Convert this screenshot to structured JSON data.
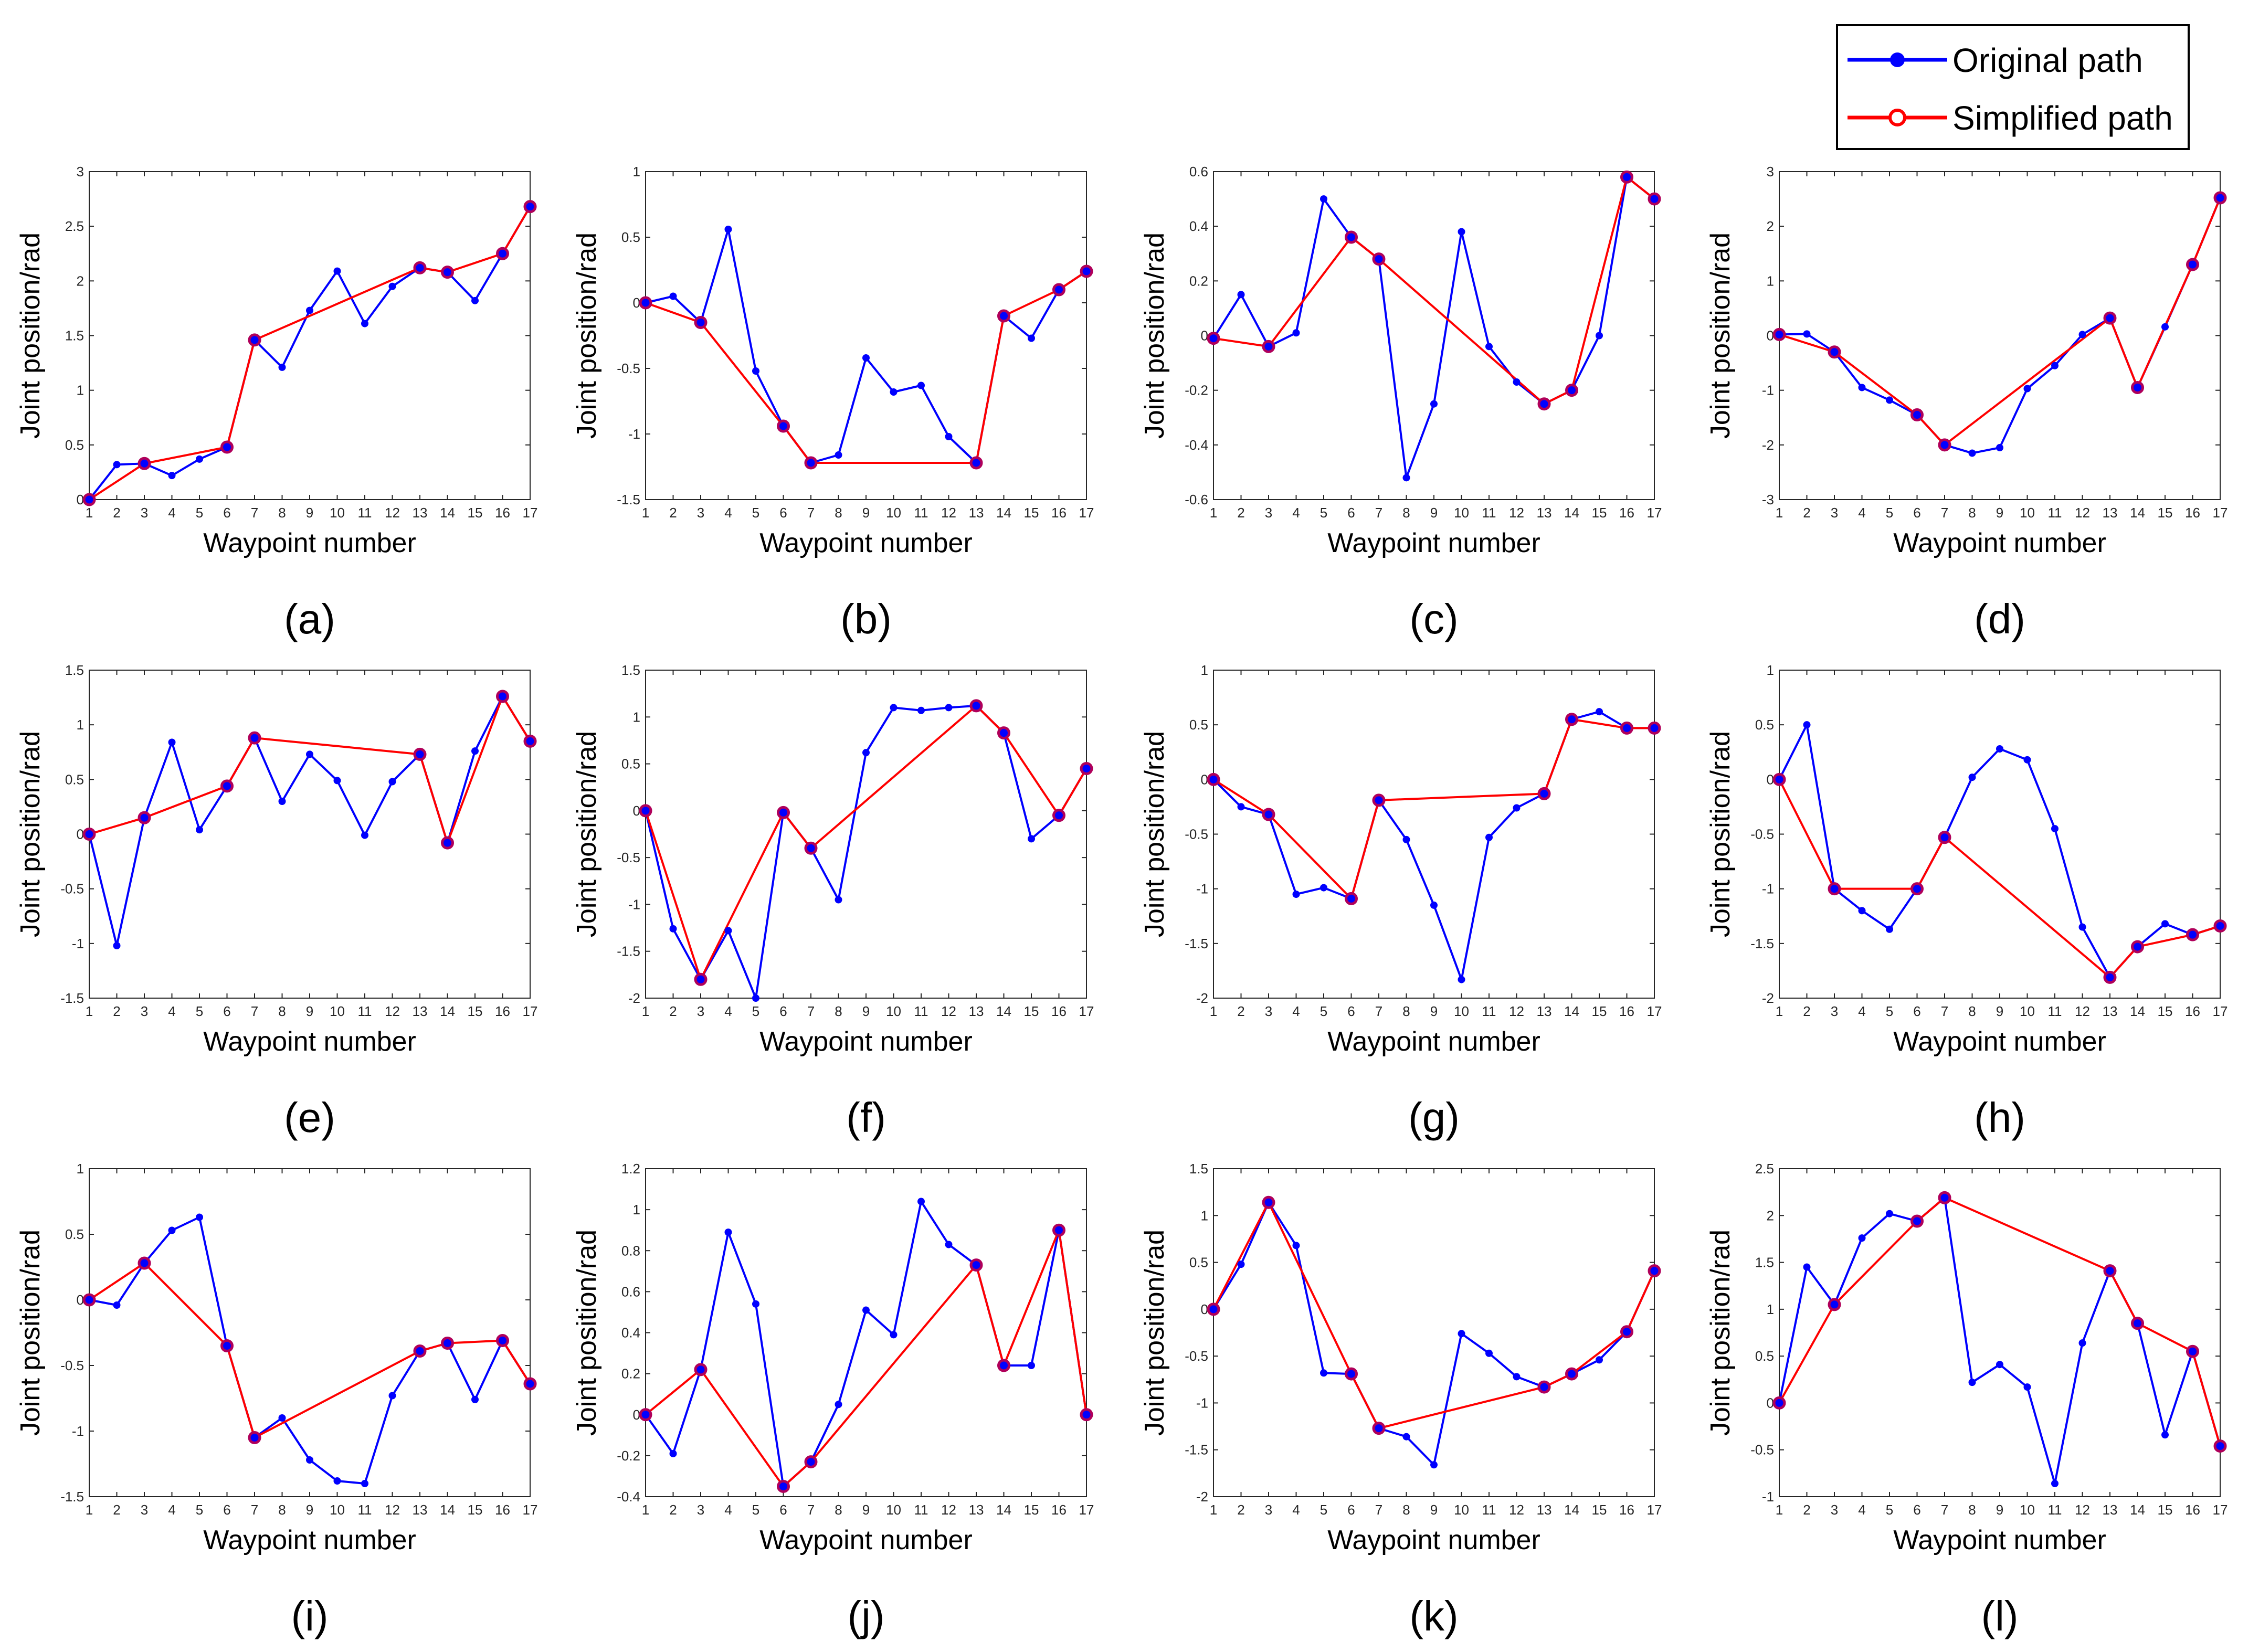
{
  "legend": {
    "original_label": "Original path",
    "simplified_label": "Simplified path"
  },
  "colors": {
    "original": "#0000ff",
    "simplified": "#ff0000",
    "marker_edge": "#b0005a",
    "axis": "#262626"
  },
  "chart_data": [
    {
      "type": "line",
      "caption": "(a)",
      "xlabel": "Waypoint number",
      "ylabel": "Joint position/rad",
      "xlim": [
        1,
        17
      ],
      "ylim": [
        0,
        3
      ],
      "yticks": [
        0,
        0.5,
        1,
        1.5,
        2,
        2.5,
        3
      ],
      "x": [
        1,
        2,
        3,
        4,
        5,
        6,
        7,
        8,
        9,
        10,
        11,
        12,
        13,
        14,
        15,
        16,
        17
      ],
      "series": [
        {
          "name": "Original path",
          "values": [
            0,
            0.32,
            0.33,
            0.22,
            0.37,
            0.48,
            1.46,
            1.21,
            1.73,
            2.09,
            1.61,
            1.95,
            2.12,
            2.08,
            1.82,
            2.25,
            2.68
          ]
        },
        {
          "name": "Simplified path",
          "x": [
            1,
            3,
            6,
            7,
            13,
            14,
            16,
            17
          ],
          "values": [
            0,
            0.33,
            0.48,
            1.46,
            2.12,
            2.08,
            2.25,
            2.68
          ]
        }
      ]
    },
    {
      "type": "line",
      "caption": "(b)",
      "xlabel": "Waypoint number",
      "ylabel": "Joint position/rad",
      "xlim": [
        1,
        17
      ],
      "ylim": [
        -1.5,
        1
      ],
      "yticks": [
        -1.5,
        -1,
        -0.5,
        0,
        0.5,
        1
      ],
      "x": [
        1,
        2,
        3,
        4,
        5,
        6,
        7,
        8,
        9,
        10,
        11,
        12,
        13,
        14,
        15,
        16,
        17
      ],
      "series": [
        {
          "name": "Original path",
          "values": [
            0,
            0.05,
            -0.15,
            0.56,
            -0.52,
            -0.94,
            -1.22,
            -1.16,
            -0.42,
            -0.68,
            -0.63,
            -1.02,
            -1.22,
            -0.1,
            -0.27,
            0.1,
            0.24
          ]
        },
        {
          "name": "Simplified path",
          "x": [
            1,
            3,
            6,
            7,
            13,
            14,
            16,
            17
          ],
          "values": [
            0,
            -0.15,
            -0.94,
            -1.22,
            -1.22,
            -0.1,
            0.1,
            0.24
          ]
        }
      ]
    },
    {
      "type": "line",
      "caption": "(c)",
      "xlabel": "Waypoint number",
      "ylabel": "Joint position/rad",
      "xlim": [
        1,
        17
      ],
      "ylim": [
        -0.6,
        0.6
      ],
      "yticks": [
        -0.6,
        -0.4,
        -0.2,
        0,
        0.2,
        0.4,
        0.6
      ],
      "x": [
        1,
        2,
        3,
        4,
        5,
        6,
        7,
        8,
        9,
        10,
        11,
        12,
        13,
        14,
        15,
        16,
        17
      ],
      "series": [
        {
          "name": "Original path",
          "values": [
            -0.01,
            0.15,
            -0.04,
            0.01,
            0.5,
            0.36,
            0.28,
            -0.52,
            -0.25,
            0.38,
            -0.04,
            -0.17,
            -0.25,
            -0.2,
            0,
            0.58,
            0.5
          ]
        },
        {
          "name": "Simplified path",
          "x": [
            1,
            3,
            6,
            7,
            13,
            14,
            16,
            17
          ],
          "values": [
            -0.01,
            -0.04,
            0.36,
            0.28,
            -0.25,
            -0.2,
            0.58,
            0.5
          ]
        }
      ]
    },
    {
      "type": "line",
      "caption": "(d)",
      "xlabel": "Waypoint number",
      "ylabel": "Joint position/rad",
      "xlim": [
        1,
        17
      ],
      "ylim": [
        -3,
        3
      ],
      "yticks": [
        -3,
        -2,
        -1,
        0,
        1,
        2,
        3
      ],
      "x": [
        1,
        2,
        3,
        4,
        5,
        6,
        7,
        8,
        9,
        10,
        11,
        12,
        13,
        14,
        15,
        16,
        17
      ],
      "series": [
        {
          "name": "Original path",
          "values": [
            0.02,
            0.03,
            -0.3,
            -0.95,
            -1.18,
            -1.45,
            -2,
            -2.15,
            -2.05,
            -0.97,
            -0.55,
            0.02,
            0.32,
            -0.95,
            0.16,
            1.3,
            2.52
          ]
        },
        {
          "name": "Simplified path",
          "x": [
            1,
            3,
            6,
            7,
            13,
            14,
            16,
            17
          ],
          "values": [
            0.02,
            -0.3,
            -1.45,
            -2,
            0.32,
            -0.95,
            1.3,
            2.52
          ]
        }
      ]
    },
    {
      "type": "line",
      "caption": "(e)",
      "xlabel": "Waypoint number",
      "ylabel": "Joint position/rad",
      "xlim": [
        1,
        17
      ],
      "ylim": [
        -1.5,
        1.5
      ],
      "yticks": [
        -1.5,
        -1,
        -0.5,
        0,
        0.5,
        1,
        1.5
      ],
      "x": [
        1,
        2,
        3,
        4,
        5,
        6,
        7,
        8,
        9,
        10,
        11,
        12,
        13,
        14,
        15,
        16,
        17
      ],
      "series": [
        {
          "name": "Original path",
          "values": [
            0,
            -1.02,
            0.15,
            0.84,
            0.04,
            0.44,
            0.88,
            0.3,
            0.73,
            0.49,
            -0.01,
            0.48,
            0.73,
            -0.08,
            0.76,
            1.26,
            0.85
          ]
        },
        {
          "name": "Simplified path",
          "x": [
            1,
            3,
            6,
            7,
            13,
            14,
            16,
            17
          ],
          "values": [
            0,
            0.15,
            0.44,
            0.88,
            0.73,
            -0.08,
            1.26,
            0.85
          ]
        }
      ]
    },
    {
      "type": "line",
      "caption": "(f)",
      "xlabel": "Waypoint number",
      "ylabel": "Joint position/rad",
      "xlim": [
        1,
        17
      ],
      "ylim": [
        -2,
        1.5
      ],
      "yticks": [
        -2,
        -1.5,
        -1,
        -0.5,
        0,
        0.5,
        1,
        1.5
      ],
      "x": [
        1,
        2,
        3,
        4,
        5,
        6,
        7,
        8,
        9,
        10,
        11,
        12,
        13,
        14,
        15,
        16,
        17
      ],
      "series": [
        {
          "name": "Original path",
          "values": [
            0,
            -1.26,
            -1.8,
            -1.28,
            -2,
            -0.02,
            -0.4,
            -0.95,
            0.62,
            1.1,
            1.07,
            1.1,
            1.12,
            0.83,
            -0.3,
            -0.05,
            0.45
          ]
        },
        {
          "name": "Simplified path",
          "x": [
            1,
            3,
            6,
            7,
            13,
            14,
            16,
            17
          ],
          "values": [
            0,
            -1.8,
            -0.02,
            -0.4,
            1.12,
            0.83,
            -0.05,
            0.45
          ]
        }
      ]
    },
    {
      "type": "line",
      "caption": "(g)",
      "xlabel": "Waypoint number",
      "ylabel": "Joint position/rad",
      "xlim": [
        1,
        17
      ],
      "ylim": [
        -2,
        1
      ],
      "yticks": [
        -2,
        -1.5,
        -1,
        -0.5,
        0,
        0.5,
        1
      ],
      "x": [
        1,
        2,
        3,
        4,
        5,
        6,
        7,
        8,
        9,
        10,
        11,
        12,
        13,
        14,
        15,
        16,
        17
      ],
      "series": [
        {
          "name": "Original path",
          "values": [
            0,
            -0.25,
            -0.32,
            -1.05,
            -0.99,
            -1.09,
            -0.19,
            -0.55,
            -1.15,
            -1.83,
            -0.53,
            -0.26,
            -0.13,
            0.55,
            0.62,
            0.47,
            0.47
          ]
        },
        {
          "name": "Simplified path",
          "x": [
            1,
            3,
            6,
            7,
            13,
            14,
            16,
            17
          ],
          "values": [
            0,
            -0.32,
            -1.09,
            -0.19,
            -0.13,
            0.55,
            0.47,
            0.47
          ]
        }
      ]
    },
    {
      "type": "line",
      "caption": "(h)",
      "xlabel": "Waypoint number",
      "ylabel": "Joint position/rad",
      "xlim": [
        1,
        17
      ],
      "ylim": [
        -2,
        1
      ],
      "yticks": [
        -2,
        -1.5,
        -1,
        -0.5,
        0,
        0.5,
        1
      ],
      "x": [
        1,
        2,
        3,
        4,
        5,
        6,
        7,
        8,
        9,
        10,
        11,
        12,
        13,
        14,
        15,
        16,
        17
      ],
      "series": [
        {
          "name": "Original path",
          "values": [
            0,
            0.5,
            -1,
            -1.2,
            -1.37,
            -1,
            -0.53,
            0.02,
            0.28,
            0.18,
            -0.45,
            -1.35,
            -1.81,
            -1.53,
            -1.32,
            -1.42,
            -1.34
          ]
        },
        {
          "name": "Simplified path",
          "x": [
            1,
            3,
            6,
            7,
            13,
            14,
            16,
            17
          ],
          "values": [
            0,
            -1,
            -1,
            -0.53,
            -1.81,
            -1.53,
            -1.42,
            -1.34
          ]
        }
      ]
    },
    {
      "type": "line",
      "caption": "(i)",
      "xlabel": "Waypoint number",
      "ylabel": "Joint position/rad",
      "xlim": [
        1,
        17
      ],
      "ylim": [
        -1.5,
        1
      ],
      "yticks": [
        -1.5,
        -1,
        -0.5,
        0,
        0.5,
        1
      ],
      "x": [
        1,
        2,
        3,
        4,
        5,
        6,
        7,
        8,
        9,
        10,
        11,
        12,
        13,
        14,
        15,
        16,
        17
      ],
      "series": [
        {
          "name": "Original path",
          "values": [
            0,
            -0.04,
            0.28,
            0.53,
            0.63,
            -0.35,
            -1.05,
            -0.9,
            -1.22,
            -1.38,
            -1.4,
            -0.73,
            -0.39,
            -0.33,
            -0.76,
            -0.31,
            -0.64
          ]
        },
        {
          "name": "Simplified path",
          "x": [
            1,
            3,
            6,
            7,
            13,
            14,
            16,
            17
          ],
          "values": [
            0,
            0.28,
            -0.35,
            -1.05,
            -0.39,
            -0.33,
            -0.31,
            -0.64
          ]
        }
      ]
    },
    {
      "type": "line",
      "caption": "(j)",
      "xlabel": "Waypoint number",
      "ylabel": "Joint position/rad",
      "xlim": [
        1,
        17
      ],
      "ylim": [
        -0.4,
        1.2
      ],
      "yticks": [
        -0.4,
        -0.2,
        0,
        0.2,
        0.4,
        0.6,
        0.8,
        1,
        1.2
      ],
      "x": [
        1,
        2,
        3,
        4,
        5,
        6,
        7,
        8,
        9,
        10,
        11,
        12,
        13,
        14,
        15,
        16,
        17
      ],
      "series": [
        {
          "name": "Original path",
          "values": [
            0,
            -0.19,
            0.22,
            0.89,
            0.54,
            -0.35,
            -0.23,
            0.05,
            0.51,
            0.39,
            1.04,
            0.83,
            0.73,
            0.24,
            0.24,
            0.9,
            0
          ]
        },
        {
          "name": "Simplified path",
          "x": [
            1,
            3,
            6,
            7,
            13,
            14,
            16,
            17
          ],
          "values": [
            0,
            0.22,
            -0.35,
            -0.23,
            0.73,
            0.24,
            0.9,
            0
          ]
        }
      ]
    },
    {
      "type": "line",
      "caption": "(k)",
      "xlabel": "Waypoint number",
      "ylabel": "Joint position/rad",
      "xlim": [
        1,
        17
      ],
      "ylim": [
        -2,
        1.5
      ],
      "yticks": [
        -2,
        -1.5,
        -1,
        -0.5,
        0,
        0.5,
        1,
        1.5
      ],
      "x": [
        1,
        2,
        3,
        4,
        5,
        6,
        7,
        8,
        9,
        10,
        11,
        12,
        13,
        14,
        15,
        16,
        17
      ],
      "series": [
        {
          "name": "Original path",
          "values": [
            0,
            0.48,
            1.14,
            0.68,
            -0.68,
            -0.69,
            -1.27,
            -1.36,
            -1.66,
            -0.26,
            -0.47,
            -0.72,
            -0.83,
            -0.69,
            -0.54,
            -0.24,
            0.41
          ]
        },
        {
          "name": "Simplified path",
          "x": [
            1,
            3,
            6,
            7,
            13,
            14,
            16,
            17
          ],
          "values": [
            0,
            1.14,
            -0.69,
            -1.27,
            -0.83,
            -0.69,
            -0.24,
            0.41
          ]
        }
      ]
    },
    {
      "type": "line",
      "caption": "(l)",
      "xlabel": "Waypoint number",
      "ylabel": "Joint position/rad",
      "xlim": [
        1,
        17
      ],
      "ylim": [
        -1,
        2.5
      ],
      "yticks": [
        -1,
        -0.5,
        0,
        0.5,
        1,
        1.5,
        2,
        2.5
      ],
      "x": [
        1,
        2,
        3,
        4,
        5,
        6,
        7,
        8,
        9,
        10,
        11,
        12,
        13,
        14,
        15,
        16,
        17
      ],
      "series": [
        {
          "name": "Original path",
          "values": [
            0,
            1.45,
            1.05,
            1.76,
            2.02,
            1.94,
            2.19,
            0.22,
            0.41,
            0.17,
            -0.86,
            0.64,
            1.41,
            0.85,
            -0.34,
            0.55,
            -0.46
          ]
        },
        {
          "name": "Simplified path",
          "x": [
            1,
            3,
            6,
            7,
            13,
            14,
            16,
            17
          ],
          "values": [
            0,
            1.05,
            1.94,
            2.19,
            1.41,
            0.85,
            0.55,
            -0.46
          ]
        }
      ]
    }
  ]
}
